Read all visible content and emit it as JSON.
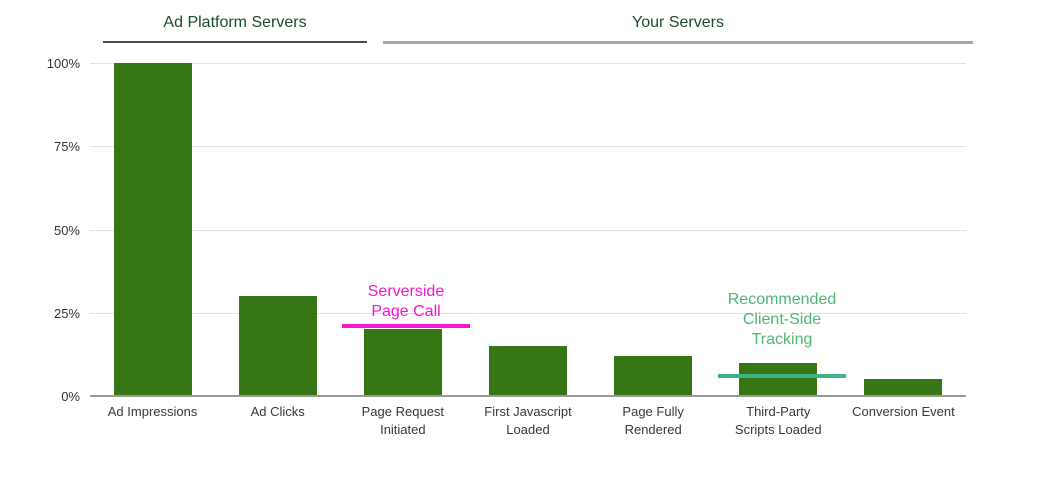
{
  "groups": [
    {
      "label": "Ad Platform Servers",
      "underline_color": "#4d4d4d"
    },
    {
      "label": "Your Servers",
      "underline_color": "#a8a8a8"
    }
  ],
  "chart_data": {
    "type": "bar",
    "categories": [
      "Ad Impressions",
      "Ad Clicks",
      "Page Request Initiated",
      "First Javascript Loaded",
      "Page Fully Rendered",
      "Third-Party Scripts Loaded",
      "Conversion Event"
    ],
    "category_label_lines": [
      [
        "Ad Impressions"
      ],
      [
        "Ad Clicks"
      ],
      [
        "Page Request",
        "Initiated"
      ],
      [
        "First Javascript",
        "Loaded"
      ],
      [
        "Page Fully",
        "Rendered"
      ],
      [
        "Third-Party",
        "Scripts Loaded"
      ],
      [
        "Conversion Event"
      ]
    ],
    "values": [
      100,
      30,
      20,
      15,
      12,
      10,
      5
    ],
    "unit": "%",
    "ylim": [
      0,
      100
    ],
    "yticks": [
      100,
      75,
      50,
      25,
      0
    ],
    "ytick_labels": [
      "100%",
      "75%",
      "50%",
      "25%",
      "0%"
    ],
    "grid": true,
    "legend_position": "none",
    "bar_color": "#377614",
    "gridline_color": "#e3e3e3",
    "baseline_color": "#9a9a9a",
    "tick_label_color": "#333333",
    "category_label_color": "#383838",
    "group_label_color": "#1c4b2a"
  },
  "annotations": [
    {
      "text": "Serverside Page Call",
      "target_category": "Page Request Initiated",
      "line_value": 21,
      "text_color": "#fa14d2",
      "line_color": "#fa14d2"
    },
    {
      "text": "Recommended Client-Side Tracking",
      "target_category": "Third-Party Scripts Loaded",
      "line_value": 6,
      "text_color": "#4eb873",
      "line_color": "#3cb487"
    }
  ]
}
